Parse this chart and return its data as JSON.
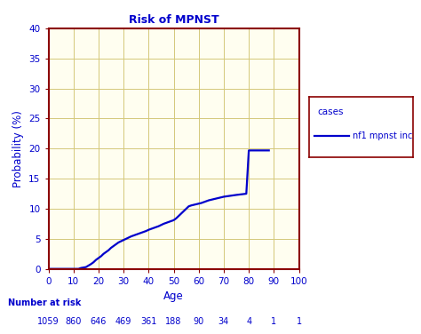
{
  "title": "Risk of MPNST",
  "xlabel": "Age",
  "ylabel": "Probability (%)",
  "xlim": [
    0,
    100
  ],
  "ylim": [
    0,
    40
  ],
  "xticks": [
    0,
    10,
    20,
    30,
    40,
    50,
    60,
    70,
    80,
    90,
    100
  ],
  "yticks": [
    0,
    5,
    10,
    15,
    20,
    25,
    30,
    35,
    40
  ],
  "line_color": "#0000cc",
  "line_width": 1.6,
  "background_color": "#fffef0",
  "grid_color": "#d4c87a",
  "border_color": "#8b0000",
  "title_color": "#0000cc",
  "axis_label_color": "#0000cc",
  "tick_label_color": "#0000cc",
  "fig_bg_color": "#ffffff",
  "legend_title": "cases",
  "legend_label": "nf1 mpnst inc",
  "legend_border_color": "#8b0000",
  "number_at_risk_label": "Number at risk",
  "number_at_risk_ages": [
    0,
    10,
    20,
    30,
    40,
    50,
    60,
    70,
    80,
    90,
    100
  ],
  "number_at_risk_values": [
    "1059",
    "860",
    "646",
    "469",
    "361",
    "188",
    "90",
    "34",
    "4",
    "1",
    "1"
  ],
  "curve_x": [
    0,
    12,
    13,
    15,
    16,
    17,
    18,
    19,
    20,
    21,
    22,
    23,
    24,
    25,
    26,
    27,
    28,
    29,
    30,
    31,
    32,
    33,
    34,
    35,
    36,
    37,
    38,
    39,
    40,
    41,
    42,
    43,
    44,
    45,
    46,
    47,
    48,
    49,
    50,
    51,
    52,
    53,
    54,
    55,
    56,
    57,
    58,
    59,
    60,
    61,
    62,
    63,
    64,
    65,
    66,
    67,
    68,
    69,
    70,
    75,
    79,
    80,
    88
  ],
  "curve_y": [
    0.0,
    0.0,
    0.15,
    0.3,
    0.55,
    0.8,
    1.1,
    1.5,
    1.8,
    2.1,
    2.5,
    2.8,
    3.1,
    3.5,
    3.8,
    4.1,
    4.4,
    4.6,
    4.8,
    5.0,
    5.2,
    5.4,
    5.55,
    5.7,
    5.85,
    6.0,
    6.15,
    6.3,
    6.5,
    6.65,
    6.8,
    6.95,
    7.1,
    7.3,
    7.5,
    7.65,
    7.8,
    7.95,
    8.1,
    8.4,
    8.8,
    9.2,
    9.6,
    10.0,
    10.4,
    10.55,
    10.65,
    10.75,
    10.85,
    10.95,
    11.1,
    11.25,
    11.4,
    11.5,
    11.6,
    11.7,
    11.8,
    11.9,
    12.0,
    12.3,
    12.5,
    19.7,
    19.7
  ]
}
